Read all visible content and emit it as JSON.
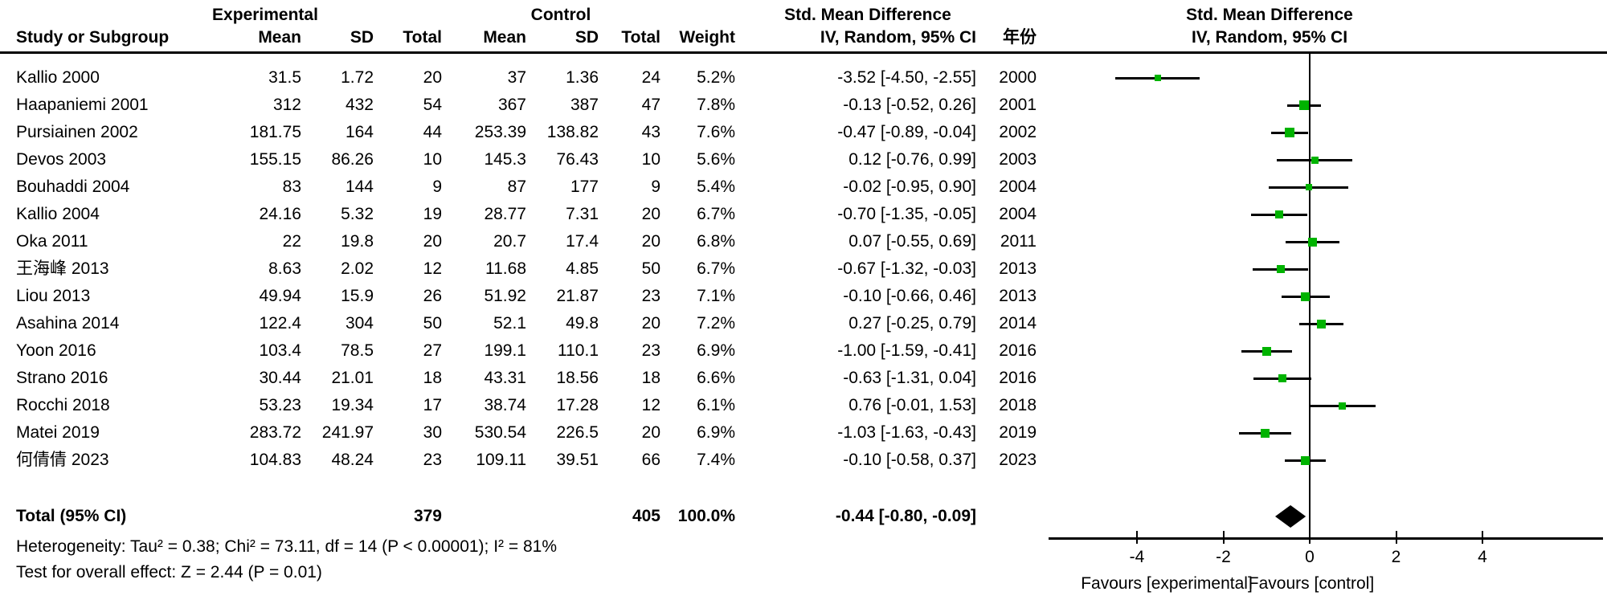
{
  "header": {
    "study_col": "Study or Subgroup",
    "group_experimental": "Experimental",
    "group_control": "Control",
    "mean_col": "Mean",
    "sd_col": "SD",
    "total_col": "Total",
    "weight_col": "Weight",
    "smd_title": "Std. Mean Difference",
    "smd_subtitle": "IV, Random, 95% CI",
    "year_col": "年份",
    "plot_title": "Std. Mean Difference",
    "plot_subtitle": "IV, Random, 95% CI"
  },
  "chart_data": {
    "type": "forest",
    "effect_measure": "Std. Mean Difference",
    "model": "IV, Random, 95% CI",
    "studies": [
      {
        "name": "Kallio 2000",
        "exp_mean": "31.5",
        "exp_sd": "1.72",
        "exp_total": "20",
        "ctl_mean": "37",
        "ctl_sd": "1.36",
        "ctl_total": "24",
        "weight": "5.2%",
        "weight_val": 5.2,
        "ci_text": "-3.52 [-4.50, -2.55]",
        "year": "2000",
        "est": -3.52,
        "lo": -4.5,
        "hi": -2.55
      },
      {
        "name": "Haapaniemi 2001",
        "exp_mean": "312",
        "exp_sd": "432",
        "exp_total": "54",
        "ctl_mean": "367",
        "ctl_sd": "387",
        "ctl_total": "47",
        "weight": "7.8%",
        "weight_val": 7.8,
        "ci_text": "-0.13 [-0.52, 0.26]",
        "year": "2001",
        "est": -0.13,
        "lo": -0.52,
        "hi": 0.26
      },
      {
        "name": "Pursiainen 2002",
        "exp_mean": "181.75",
        "exp_sd": "164",
        "exp_total": "44",
        "ctl_mean": "253.39",
        "ctl_sd": "138.82",
        "ctl_total": "43",
        "weight": "7.6%",
        "weight_val": 7.6,
        "ci_text": "-0.47 [-0.89, -0.04]",
        "year": "2002",
        "est": -0.47,
        "lo": -0.89,
        "hi": -0.04
      },
      {
        "name": "Devos 2003",
        "exp_mean": "155.15",
        "exp_sd": "86.26",
        "exp_total": "10",
        "ctl_mean": "145.3",
        "ctl_sd": "76.43",
        "ctl_total": "10",
        "weight": "5.6%",
        "weight_val": 5.6,
        "ci_text": "0.12 [-0.76, 0.99]",
        "year": "2003",
        "est": 0.12,
        "lo": -0.76,
        "hi": 0.99
      },
      {
        "name": "Bouhaddi 2004",
        "exp_mean": "83",
        "exp_sd": "144",
        "exp_total": "9",
        "ctl_mean": "87",
        "ctl_sd": "177",
        "ctl_total": "9",
        "weight": "5.4%",
        "weight_val": 5.4,
        "ci_text": "-0.02 [-0.95, 0.90]",
        "year": "2004",
        "est": -0.02,
        "lo": -0.95,
        "hi": 0.9
      },
      {
        "name": "Kallio 2004",
        "exp_mean": "24.16",
        "exp_sd": "5.32",
        "exp_total": "19",
        "ctl_mean": "28.77",
        "ctl_sd": "7.31",
        "ctl_total": "20",
        "weight": "6.7%",
        "weight_val": 6.7,
        "ci_text": "-0.70 [-1.35, -0.05]",
        "year": "2004",
        "est": -0.7,
        "lo": -1.35,
        "hi": -0.05
      },
      {
        "name": "Oka 2011",
        "exp_mean": "22",
        "exp_sd": "19.8",
        "exp_total": "20",
        "ctl_mean": "20.7",
        "ctl_sd": "17.4",
        "ctl_total": "20",
        "weight": "6.8%",
        "weight_val": 6.8,
        "ci_text": "0.07 [-0.55, 0.69]",
        "year": "2011",
        "est": 0.07,
        "lo": -0.55,
        "hi": 0.69
      },
      {
        "name": "王海峰 2013",
        "exp_mean": "8.63",
        "exp_sd": "2.02",
        "exp_total": "12",
        "ctl_mean": "11.68",
        "ctl_sd": "4.85",
        "ctl_total": "50",
        "weight": "6.7%",
        "weight_val": 6.7,
        "ci_text": "-0.67 [-1.32, -0.03]",
        "year": "2013",
        "est": -0.67,
        "lo": -1.32,
        "hi": -0.03
      },
      {
        "name": "Liou 2013",
        "exp_mean": "49.94",
        "exp_sd": "15.9",
        "exp_total": "26",
        "ctl_mean": "51.92",
        "ctl_sd": "21.87",
        "ctl_total": "23",
        "weight": "7.1%",
        "weight_val": 7.1,
        "ci_text": "-0.10 [-0.66, 0.46]",
        "year": "2013",
        "est": -0.1,
        "lo": -0.66,
        "hi": 0.46
      },
      {
        "name": "Asahina 2014",
        "exp_mean": "122.4",
        "exp_sd": "304",
        "exp_total": "50",
        "ctl_mean": "52.1",
        "ctl_sd": "49.8",
        "ctl_total": "20",
        "weight": "7.2%",
        "weight_val": 7.2,
        "ci_text": "0.27 [-0.25, 0.79]",
        "year": "2014",
        "est": 0.27,
        "lo": -0.25,
        "hi": 0.79
      },
      {
        "name": "Yoon 2016",
        "exp_mean": "103.4",
        "exp_sd": "78.5",
        "exp_total": "27",
        "ctl_mean": "199.1",
        "ctl_sd": "110.1",
        "ctl_total": "23",
        "weight": "6.9%",
        "weight_val": 6.9,
        "ci_text": "-1.00 [-1.59, -0.41]",
        "year": "2016",
        "est": -1.0,
        "lo": -1.59,
        "hi": -0.41
      },
      {
        "name": "Strano 2016",
        "exp_mean": "30.44",
        "exp_sd": "21.01",
        "exp_total": "18",
        "ctl_mean": "43.31",
        "ctl_sd": "18.56",
        "ctl_total": "18",
        "weight": "6.6%",
        "weight_val": 6.6,
        "ci_text": "-0.63 [-1.31, 0.04]",
        "year": "2016",
        "est": -0.63,
        "lo": -1.31,
        "hi": 0.04
      },
      {
        "name": "Rocchi 2018",
        "exp_mean": "53.23",
        "exp_sd": "19.34",
        "exp_total": "17",
        "ctl_mean": "38.74",
        "ctl_sd": "17.28",
        "ctl_total": "12",
        "weight": "6.1%",
        "weight_val": 6.1,
        "ci_text": "0.76 [-0.01, 1.53]",
        "year": "2018",
        "est": 0.76,
        "lo": -0.01,
        "hi": 1.53
      },
      {
        "name": "Matei 2019",
        "exp_mean": "283.72",
        "exp_sd": "241.97",
        "exp_total": "30",
        "ctl_mean": "530.54",
        "ctl_sd": "226.5",
        "ctl_total": "20",
        "weight": "6.9%",
        "weight_val": 6.9,
        "ci_text": "-1.03 [-1.63, -0.43]",
        "year": "2019",
        "est": -1.03,
        "lo": -1.63,
        "hi": -0.43
      },
      {
        "name": "何倩倩 2023",
        "exp_mean": "104.83",
        "exp_sd": "48.24",
        "exp_total": "23",
        "ctl_mean": "109.11",
        "ctl_sd": "39.51",
        "ctl_total": "66",
        "weight": "7.4%",
        "weight_val": 7.4,
        "ci_text": "-0.10 [-0.58, 0.37]",
        "year": "2023",
        "est": -0.1,
        "lo": -0.58,
        "hi": 0.37
      }
    ],
    "total": {
      "label": "Total (95% CI)",
      "exp_total": "379",
      "ctl_total": "405",
      "weight": "100.0%",
      "ci_text": "-0.44 [-0.80, -0.09]",
      "est": -0.44,
      "lo": -0.8,
      "hi": -0.09
    },
    "footnotes": {
      "heterogeneity": "Heterogeneity: Tau² = 0.38; Chi² = 73.11, df = 14 (P < 0.00001); I² = 81%",
      "overall_effect": "Test for overall effect: Z = 2.44 (P = 0.01)"
    },
    "axis": {
      "ticks": [
        -4,
        -2,
        0,
        2,
        4
      ],
      "tick_labels": [
        "-4",
        "-2",
        "0",
        "2",
        "4"
      ],
      "xlim_drawn": [
        -6.0,
        6.8
      ],
      "favours_left": "Favours [experimental]",
      "favours_right": "Favours [control]"
    },
    "colors": {
      "square": "#00b300",
      "line": "#000000",
      "diamond": "#000000",
      "text": "#000000"
    }
  }
}
